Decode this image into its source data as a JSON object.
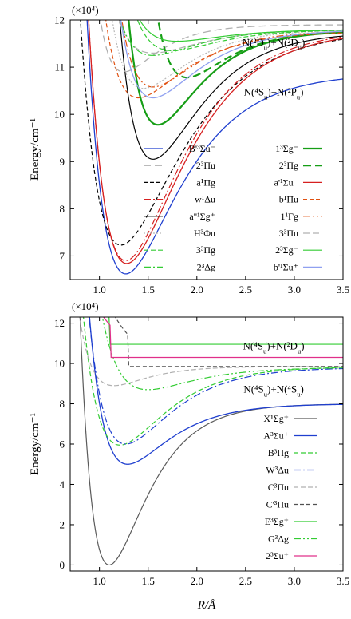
{
  "chart_data": [
    {
      "type": "line",
      "panel": "upper",
      "multiplier_label": "(×10⁴)",
      "ylabel": "Energy/cm⁻¹",
      "xlabel": "",
      "xlim": [
        0.7,
        3.5
      ],
      "ylim": [
        6.5,
        12.0
      ],
      "x_ticks": [
        1.0,
        1.5,
        2.0,
        2.5,
        3.0,
        3.5
      ],
      "x_tick_labels": [
        "1.0",
        "1.5",
        "2.0",
        "2.5",
        "3.0",
        "3.5"
      ],
      "y_ticks": [
        7,
        8,
        9,
        10,
        11,
        12
      ],
      "y_tick_labels": [
        "7",
        "8",
        "9",
        "10",
        "11",
        "12"
      ],
      "annotations": [
        {
          "text": "N(²D_u)+N(²D_u)",
          "x": 2.87,
          "y": 11.45
        },
        {
          "text": "N(⁴S_u)+N(²P_u)",
          "x": 2.87,
          "y": 10.4
        }
      ],
      "legend_position": "lower-right",
      "series": [
        {
          "name": "B'³Σu⁻",
          "color": "#1f3fcf",
          "dash": "solid",
          "width": 1.3,
          "Te": 6.62,
          "re": 1.27,
          "De": 4.25,
          "a": 1.9
        },
        {
          "name": "1³Σg⁻",
          "color": "#169e16",
          "dash": "solid",
          "width": 2.2,
          "Te": 9.78,
          "re": 1.6,
          "De": 2.0,
          "a": 2.4
        },
        {
          "name": "2³Πu",
          "color": "#b0b0b0",
          "dash": "9 5",
          "width": 1.3,
          "Te": 10.9,
          "re": 1.25,
          "De": 1.0,
          "a": 3.0
        },
        {
          "name": "2³Πg",
          "color": "#169e16",
          "dash": "10 5",
          "width": 2.2,
          "Te": 10.78,
          "re": 1.9,
          "De": 1.0,
          "a": 2.5
        },
        {
          "name": "a¹Πg",
          "color": "#000000",
          "dash": "5 3",
          "width": 1.2,
          "Te": 7.23,
          "re": 1.22,
          "De": 4.55,
          "a": 1.7
        },
        {
          "name": "a'¹Σu⁻",
          "color": "#d62020",
          "dash": "solid",
          "width": 1.3,
          "Te": 6.84,
          "re": 1.28,
          "De": 4.95,
          "a": 1.8
        },
        {
          "name": "w¹Δu",
          "color": "#d62020",
          "dash": "9 3 2 3",
          "width": 1.2,
          "Te": 6.9,
          "re": 1.27,
          "De": 4.9,
          "a": 1.85
        },
        {
          "name": "b¹Πu",
          "color": "#e05010",
          "dash": "5 3",
          "width": 1.2,
          "Te": 10.35,
          "re": 1.4,
          "De": 1.4,
          "a": 2.2
        },
        {
          "name": "a''¹Σg⁺",
          "color": "#000000",
          "dash": "solid",
          "width": 1.2,
          "Te": 9.05,
          "re": 1.55,
          "De": 2.7,
          "a": 2.1
        },
        {
          "name": "1¹Γg",
          "color": "#e05010",
          "dash": "9 3 2 3 2 3",
          "width": 1.2,
          "Te": 10.58,
          "re": 1.55,
          "De": 1.2,
          "a": 2.3
        },
        {
          "name": "H³Φu",
          "color": "#b8b8b8",
          "dash": "2 2",
          "width": 1.2,
          "Te": 10.55,
          "re": 1.45,
          "De": 1.25,
          "a": 2.3
        },
        {
          "name": "3³Πu",
          "color": "#b0b0b0",
          "dash": "8 4",
          "width": 1.2,
          "Te": 11.3,
          "re": 1.55,
          "De": 0.5,
          "a": 2.2
        },
        {
          "name": "3³Πg",
          "color": "#33cc33",
          "dash": "6 3",
          "width": 1.2,
          "Te": 11.35,
          "re": 1.75,
          "De": 0.45,
          "a": 2.2
        },
        {
          "name": "2³Σg⁻",
          "color": "#33cc33",
          "dash": "solid",
          "width": 1.2,
          "Te": 11.55,
          "re": 1.8,
          "De": 0.25,
          "a": 2.2
        },
        {
          "name": "2³Δg",
          "color": "#33cc33",
          "dash": "9 3 2 3",
          "width": 1.2,
          "Te": 11.25,
          "re": 1.55,
          "De": 0.55,
          "a": 2.3
        },
        {
          "name": "b'¹Σu⁺",
          "color": "#8fa0f0",
          "dash": "solid",
          "width": 1.3,
          "Te": 10.35,
          "re": 1.55,
          "De": 1.45,
          "a": 2.2
        }
      ]
    },
    {
      "type": "line",
      "panel": "lower",
      "multiplier_label": "(×10⁴)",
      "ylabel": "Energy/cm⁻¹",
      "xlabel": "R/Å",
      "xlim": [
        0.7,
        3.5
      ],
      "ylim": [
        -0.3,
        12.3
      ],
      "x_ticks": [
        1.0,
        1.5,
        2.0,
        2.5,
        3.0,
        3.5
      ],
      "x_tick_labels": [
        "1.0",
        "1.5",
        "2.0",
        "2.5",
        "3.0",
        "3.5"
      ],
      "y_ticks": [
        0,
        2,
        4,
        6,
        8,
        10,
        12
      ],
      "y_tick_labels": [
        "0",
        "2",
        "4",
        "6",
        "8",
        "10",
        "12"
      ],
      "annotations": [
        {
          "text": "N(⁴S_u)+N(²D_u)",
          "x": 2.87,
          "y": 10.7
        },
        {
          "text": "N(⁴S_u)+N(⁴S_u)",
          "x": 2.87,
          "y": 8.55
        }
      ],
      "legend_position": "right",
      "series": [
        {
          "name": "X¹Σg⁺",
          "color": "#5a5a5a",
          "dash": "solid",
          "width": 1.2,
          "Te": 0.0,
          "re": 1.1,
          "De": 8.0,
          "a": 2.7
        },
        {
          "name": "A³Σu⁺",
          "color": "#1f3fcf",
          "dash": "solid",
          "width": 1.3,
          "Te": 5.0,
          "re": 1.29,
          "De": 3.0,
          "a": 2.4
        },
        {
          "name": "B³Πg",
          "color": "#33cc33",
          "dash": "6 3",
          "width": 1.2,
          "Te": 5.95,
          "re": 1.21,
          "De": 3.9,
          "a": 2.2
        },
        {
          "name": "W³Δu",
          "color": "#1f3fcf",
          "dash": "9 3 2 3",
          "width": 1.2,
          "Te": 6.0,
          "re": 1.27,
          "De": 3.8,
          "a": 2.2
        },
        {
          "name": "C³Πu",
          "color": "#b0b0b0",
          "dash": "6 3",
          "width": 1.2,
          "Te": 8.9,
          "re": 1.15,
          "De": 0.95,
          "a": 3.0
        },
        {
          "name": "C'³Πu",
          "color": "#505050",
          "dash": "5 3",
          "width": 1.2,
          "Te": 9.85,
          "re": 1.3,
          "De": 0.0,
          "a": 3.0
        },
        {
          "name": "E³Σg⁺",
          "color": "#33cc33",
          "dash": "solid",
          "width": 1.2,
          "Te": 10.95,
          "re": 1.1,
          "De": 0.0,
          "a": 3.0
        },
        {
          "name": "G³Δg",
          "color": "#33cc33",
          "dash": "9 3 2 3 2 3",
          "width": 1.2,
          "Te": 8.7,
          "re": 1.5,
          "De": 1.1,
          "a": 2.2
        },
        {
          "name": "2³Σu⁺",
          "color": "#e0308a",
          "dash": "solid",
          "width": 1.3,
          "Te": 10.3,
          "re": 1.12,
          "De": 0.0,
          "a": 3.0
        }
      ]
    }
  ]
}
